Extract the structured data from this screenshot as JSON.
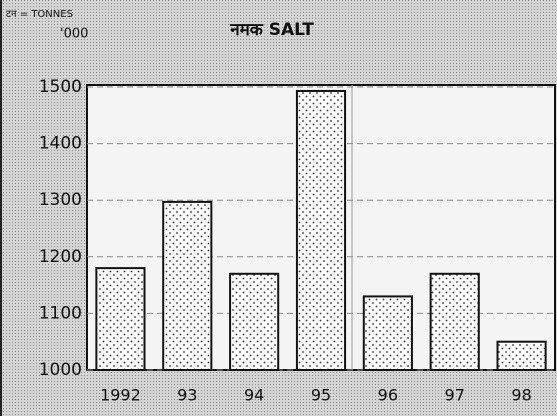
{
  "chart_data": {
    "type": "bar",
    "title": "नमक SALT",
    "unit_label": "टन = TONNES",
    "scale_label": "'000",
    "categories": [
      "1992",
      "93",
      "94",
      "95",
      "96",
      "97",
      "98"
    ],
    "values": [
      1180,
      1297,
      1170,
      1493,
      1130,
      1170,
      1050
    ],
    "color": "#ffffff",
    "ylim": [
      1000,
      1500
    ],
    "yticks": [
      1000,
      1100,
      1200,
      1300,
      1400,
      1500
    ],
    "grid": true
  }
}
